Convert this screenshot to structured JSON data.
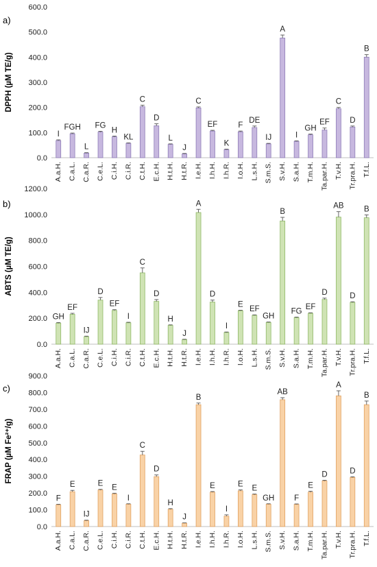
{
  "chart_data": [
    {
      "type": "bar",
      "panel": "a)",
      "ylabel": "DPPH (µM TE/g)",
      "ylim": [
        0,
        600
      ],
      "yticks": [
        "0.0",
        "100.0",
        "200.0",
        "300.0",
        "400.0",
        "500.0",
        "600.0"
      ],
      "categories": [
        "A.a.H.",
        "C.a.L.",
        "C.a.R.",
        "C.e.L.",
        "C.i.H.",
        "C.i.R.",
        "C.t.H.",
        "E.c.H.",
        "H.t.H.",
        "H.t.R.",
        "I.e.H.",
        "I.h.H.",
        "I.h.R.",
        "I.o.H.",
        "L.s.H.",
        "S.m.S.",
        "S.v.H.",
        "S.a.H.",
        "T.m.H.",
        "Ta.par.H.",
        "T.v.H.",
        "Tr.pra.H.",
        "T.f.L."
      ],
      "values": [
        68,
        95,
        18,
        102,
        83,
        57,
        203,
        127,
        53,
        15,
        198,
        106,
        32,
        103,
        120,
        55,
        476,
        65,
        91,
        110,
        195,
        122,
        400
      ],
      "errors": [
        3,
        3,
        2,
        3,
        3,
        2,
        6,
        8,
        2,
        2,
        4,
        3,
        2,
        3,
        6,
        2,
        12,
        2,
        3,
        8,
        5,
        4,
        10
      ],
      "letters": [
        "I",
        "FGH",
        "L",
        "FG",
        "H",
        "KL",
        "C",
        "D",
        "L",
        "J",
        "C",
        "EF",
        "K",
        "F",
        "DE",
        "IJ",
        "A",
        "I",
        "GH",
        "EF",
        "C",
        "D",
        "B"
      ],
      "color": "#c7b8df",
      "edge": "#8e7cb7"
    },
    {
      "type": "bar",
      "panel": "b)",
      "ylabel": "ABTS (µM TE/g)",
      "ylim": [
        0,
        1200
      ],
      "yticks": [
        "0.0",
        "200.0",
        "400.0",
        "600.0",
        "800.0",
        "1000.0",
        "1200.0"
      ],
      "categories": [
        "A.a.H.",
        "C.a.L.",
        "C.a.R.",
        "C.e.L.",
        "C.i.H.",
        "C.i.R.",
        "C.t.H.",
        "E.c.H.",
        "H.t.H.",
        "H.t.R.",
        "I.e.H.",
        "I.h.H.",
        "I.h.R.",
        "I.o.H.",
        "L.s.H.",
        "S.m.S.",
        "S.v.H.",
        "S.a.H.",
        "T.m.H.",
        "Ta.par.H.",
        "T.v.H.",
        "Tr.pra.H.",
        "T.f.L."
      ],
      "values": [
        162,
        230,
        58,
        340,
        260,
        165,
        550,
        330,
        145,
        35,
        1015,
        325,
        90,
        258,
        222,
        167,
        950,
        205,
        238,
        345,
        980,
        322,
        975
      ],
      "errors": [
        5,
        8,
        4,
        20,
        6,
        4,
        38,
        14,
        4,
        3,
        25,
        15,
        4,
        4,
        4,
        4,
        28,
        4,
        4,
        10,
        42,
        5,
        22
      ],
      "letters": [
        "GH",
        "EF",
        "IJ",
        "D",
        "EF",
        "I",
        "C",
        "D",
        "H",
        "J",
        "A",
        "D",
        "I",
        "E",
        "EF",
        "GH",
        "B",
        "FG",
        "EF",
        "D",
        "AB",
        "D",
        "B"
      ],
      "color": "#cfe3b4",
      "edge": "#8fb866"
    },
    {
      "type": "bar",
      "panel": "c)",
      "ylabel": "FRAP (µM Fe²⁺/g)",
      "ylim": [
        0,
        900
      ],
      "yticks": [
        "0.0",
        "100.0",
        "200.0",
        "300.0",
        "400.0",
        "500.0",
        "600.0",
        "700.0",
        "800.0",
        "900.0"
      ],
      "categories": [
        "A.a.H.",
        "C.a.L.",
        "C.a.R.",
        "C.e.L.",
        "C.i.H.",
        "C.i.R.",
        "C.t.H.",
        "E.c.H.",
        "H.t.H.",
        "H.t.R.",
        "I.e.H.",
        "I.h.H.",
        "I.h.R.",
        "I.o.H.",
        "L.s.H.",
        "S.m.S.",
        "S.v.H.",
        "S.a.H.",
        "T.m.H.",
        "Ta.par.H.",
        "T.v.H.",
        "Tr.pra.H.",
        "T.f.L."
      ],
      "values": [
        130,
        208,
        35,
        218,
        195,
        133,
        427,
        298,
        103,
        20,
        727,
        205,
        62,
        213,
        190,
        133,
        757,
        132,
        205,
        272,
        780,
        293,
        727
      ],
      "errors": [
        3,
        8,
        3,
        4,
        4,
        3,
        22,
        10,
        4,
        2,
        10,
        4,
        8,
        6,
        4,
        3,
        12,
        3,
        6,
        4,
        30,
        4,
        22
      ],
      "letters": [
        "F",
        "E",
        "IJ",
        "E",
        "E",
        "I",
        "C",
        "D",
        "H",
        "J",
        "B",
        "E",
        "I",
        "E",
        "E",
        "GH",
        "AB",
        "F",
        "E",
        "D",
        "A",
        "D",
        "B"
      ],
      "color": "#f9d2a6",
      "edge": "#e0a160"
    }
  ]
}
